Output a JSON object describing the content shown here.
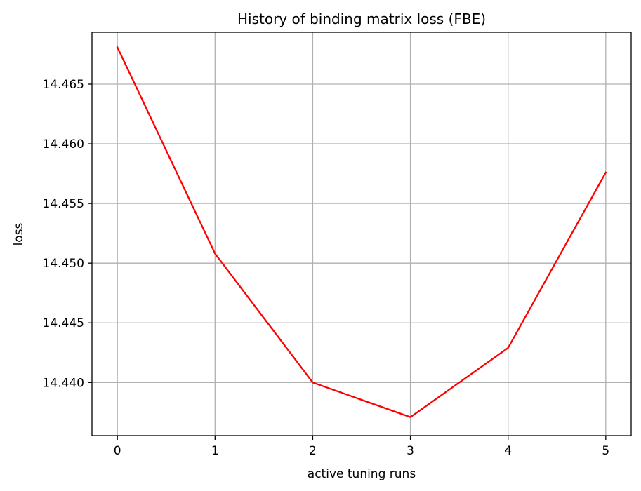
{
  "chart_data": {
    "type": "line",
    "title": "History of binding matrix loss (FBE)",
    "xlabel": "active tuning runs",
    "ylabel": "loss",
    "x": [
      0,
      1,
      2,
      3,
      4,
      5
    ],
    "series": [
      {
        "values": [
          14.4681,
          14.4508,
          14.44,
          14.4371,
          14.4429,
          14.4576
        ],
        "color": "#ff0000"
      }
    ],
    "xlim": [
      -0.26,
      5.26
    ],
    "ylim": [
      14.43555,
      14.46935
    ],
    "xticks": [
      0,
      1,
      2,
      3,
      4,
      5
    ],
    "xtick_labels": [
      "0",
      "1",
      "2",
      "3",
      "4",
      "5"
    ],
    "yticks": [
      14.44,
      14.445,
      14.45,
      14.455,
      14.46,
      14.465
    ],
    "ytick_labels": [
      "14.440",
      "14.445",
      "14.450",
      "14.455",
      "14.460",
      "14.465"
    ],
    "grid": true
  }
}
